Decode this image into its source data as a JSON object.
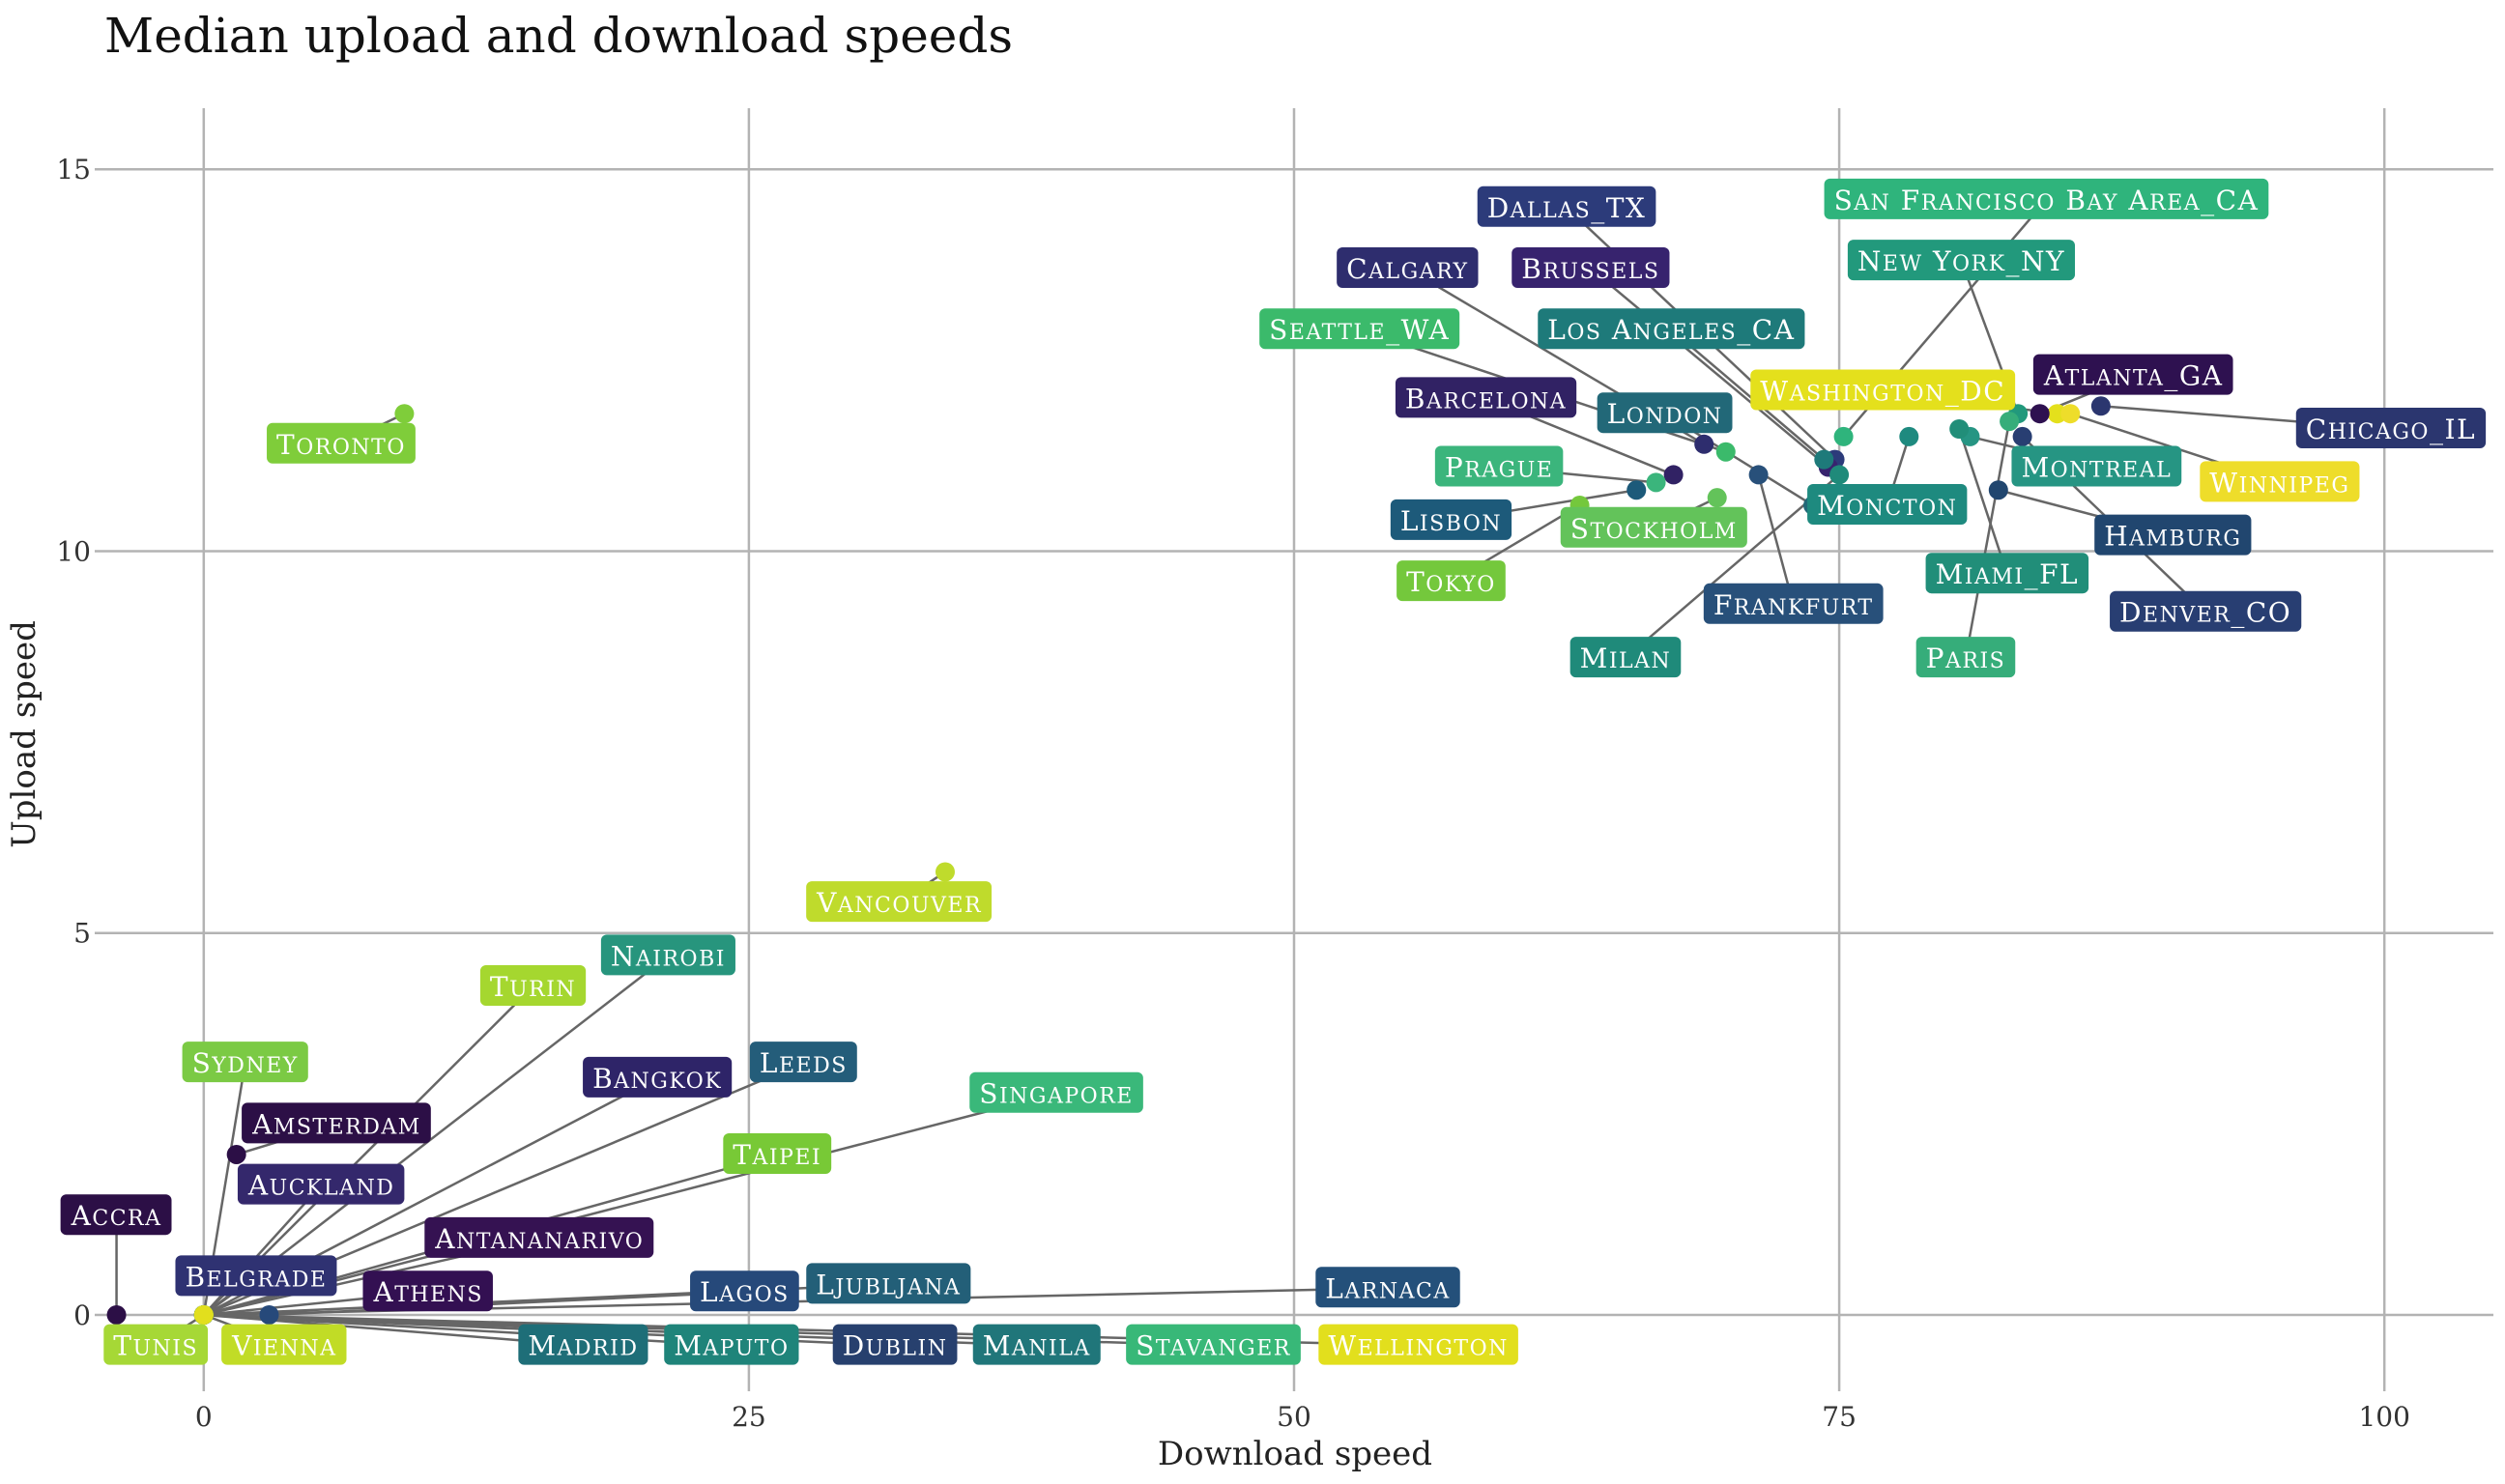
{
  "chart_data": {
    "type": "scatter",
    "title": "Median upload and download speeds",
    "xlabel": "Download speed",
    "ylabel": "Upload speed",
    "xlim": [
      -5,
      105
    ],
    "ylim": [
      -1,
      15.8
    ],
    "x_ticks": [
      0,
      25,
      50,
      75,
      100
    ],
    "x_tick_labels": [
      "0",
      "25",
      "50",
      "75",
      "100"
    ],
    "y_ticks": [
      0,
      5,
      10,
      15
    ],
    "y_tick_labels": [
      "0",
      "5",
      "10",
      "15"
    ],
    "grid": true,
    "legend": "none",
    "points": [
      {
        "label": "Dallas_TX",
        "x": 74.8,
        "y": 11.2,
        "label_x": 62.5,
        "label_y": 14.5,
        "color": "#2c3b7a"
      },
      {
        "label": "San Francisco Bay Area_CA",
        "x": 75.2,
        "y": 11.5,
        "label_x": 84.5,
        "label_y": 14.6,
        "color": "#2fb47c"
      },
      {
        "label": "Calgary",
        "x": 68.8,
        "y": 11.4,
        "label_x": 55.2,
        "label_y": 13.7,
        "color": "#2e2d6e"
      },
      {
        "label": "Brussels",
        "x": 74.5,
        "y": 11.1,
        "label_x": 63.6,
        "label_y": 13.7,
        "color": "#37236e"
      },
      {
        "label": "New York_NY",
        "x": 83.2,
        "y": 11.8,
        "label_x": 80.6,
        "label_y": 13.8,
        "color": "#22997c"
      },
      {
        "label": "Seattle_WA",
        "x": 69.8,
        "y": 11.3,
        "label_x": 53.0,
        "label_y": 12.9,
        "color": "#3bba6b"
      },
      {
        "label": "Los Angeles_CA",
        "x": 74.3,
        "y": 11.2,
        "label_x": 67.3,
        "label_y": 12.9,
        "color": "#1e7a7a"
      },
      {
        "label": "Washington_DC",
        "x": 85.0,
        "y": 11.8,
        "label_x": 77.0,
        "label_y": 12.1,
        "color": "#e4e01c"
      },
      {
        "label": "Atlanta_GA",
        "x": 84.2,
        "y": 11.8,
        "label_x": 88.5,
        "label_y": 12.3,
        "color": "#2e1150"
      },
      {
        "label": "Barcelona",
        "x": 67.4,
        "y": 11.0,
        "label_x": 58.8,
        "label_y": 12.0,
        "color": "#312264"
      },
      {
        "label": "London",
        "x": 73.8,
        "y": 10.6,
        "label_x": 67.0,
        "label_y": 11.8,
        "color": "#226878"
      },
      {
        "label": "Chicago_IL",
        "x": 87.0,
        "y": 11.9,
        "label_x": 100.3,
        "label_y": 11.6,
        "color": "#2b366f"
      },
      {
        "label": "Winnipeg",
        "x": 85.6,
        "y": 11.8,
        "label_x": 95.2,
        "label_y": 10.9,
        "color": "#eedd2a"
      },
      {
        "label": "Montreal",
        "x": 81.0,
        "y": 11.5,
        "label_x": 86.8,
        "label_y": 11.1,
        "color": "#269583"
      },
      {
        "label": "Prague",
        "x": 66.6,
        "y": 10.9,
        "label_x": 59.4,
        "label_y": 11.1,
        "color": "#3bb57c"
      },
      {
        "label": "Moncton",
        "x": 78.2,
        "y": 11.5,
        "label_x": 77.2,
        "label_y": 10.6,
        "color": "#1e8a7f"
      },
      {
        "label": "Lisbon",
        "x": 65.7,
        "y": 10.8,
        "label_x": 57.2,
        "label_y": 10.4,
        "color": "#1d5a7a"
      },
      {
        "label": "Stockholm",
        "x": 69.4,
        "y": 10.7,
        "label_x": 66.5,
        "label_y": 10.3,
        "color": "#63c35a"
      },
      {
        "label": "Hamburg",
        "x": 82.3,
        "y": 10.8,
        "label_x": 90.3,
        "label_y": 10.2,
        "color": "#21466f"
      },
      {
        "label": "Miami_FL",
        "x": 80.5,
        "y": 11.6,
        "label_x": 82.7,
        "label_y": 9.7,
        "color": "#218e79"
      },
      {
        "label": "Tokyo",
        "x": 63.1,
        "y": 10.6,
        "label_x": 57.2,
        "label_y": 9.6,
        "color": "#74c83c"
      },
      {
        "label": "Frankfurt",
        "x": 71.3,
        "y": 11.0,
        "label_x": 72.9,
        "label_y": 9.3,
        "color": "#28507a"
      },
      {
        "label": "Denver_CO",
        "x": 83.4,
        "y": 11.5,
        "label_x": 91.8,
        "label_y": 9.2,
        "color": "#283e72"
      },
      {
        "label": "Milan",
        "x": 75.0,
        "y": 11.0,
        "label_x": 65.2,
        "label_y": 8.6,
        "color": "#1f8a7a"
      },
      {
        "label": "Paris",
        "x": 82.8,
        "y": 11.7,
        "label_x": 80.8,
        "label_y": 8.6,
        "color": "#36ad7a"
      },
      {
        "label": "Toronto",
        "x": 9.2,
        "y": 11.8,
        "label_x": 6.3,
        "label_y": 11.4,
        "color": "#7fcd3a"
      },
      {
        "label": "Vancouver",
        "x": 34.0,
        "y": 5.8,
        "label_x": 31.9,
        "label_y": 5.4,
        "color": "#bfdb2c"
      },
      {
        "label": "Nairobi",
        "x": 0,
        "y": 0,
        "label_x": 21.3,
        "label_y": 4.7,
        "color": "#27957d"
      },
      {
        "label": "Turin",
        "x": 0,
        "y": 0,
        "label_x": 15.1,
        "label_y": 4.3,
        "color": "#a5d72f"
      },
      {
        "label": "Sydney",
        "x": 0,
        "y": 0,
        "label_x": 1.9,
        "label_y": 3.3,
        "color": "#7bca44"
      },
      {
        "label": "Leeds",
        "x": 0,
        "y": 0,
        "label_x": 27.5,
        "label_y": 3.3,
        "color": "#245d7a"
      },
      {
        "label": "Bangkok",
        "x": 0,
        "y": 0,
        "label_x": 20.8,
        "label_y": 3.1,
        "color": "#2e2468"
      },
      {
        "label": "Singapore",
        "x": 0,
        "y": 0,
        "label_x": 39.1,
        "label_y": 2.9,
        "color": "#3ab87a"
      },
      {
        "label": "Amsterdam",
        "x": 1.5,
        "y": 2.1,
        "label_x": 6.1,
        "label_y": 2.5,
        "color": "#2c0f46"
      },
      {
        "label": "Taipei",
        "x": 0,
        "y": 0,
        "label_x": 26.3,
        "label_y": 2.1,
        "color": "#78c936"
      },
      {
        "label": "Auckland",
        "x": 0,
        "y": 0,
        "label_x": 5.4,
        "label_y": 1.7,
        "color": "#34286c"
      },
      {
        "label": "Accra",
        "x": -4.0,
        "y": 0,
        "label_x": -4.0,
        "label_y": 1.3,
        "color": "#2c0f46"
      },
      {
        "label": "Antananarivo",
        "x": 0,
        "y": 0,
        "label_x": 15.4,
        "label_y": 1.0,
        "color": "#351252"
      },
      {
        "label": "Belgrade",
        "x": 0,
        "y": 0,
        "label_x": 2.4,
        "label_y": 0.5,
        "color": "#2f3272"
      },
      {
        "label": "Athens",
        "x": 0,
        "y": 0,
        "label_x": 10.3,
        "label_y": 0.3,
        "color": "#331052"
      },
      {
        "label": "Lagos",
        "x": 3.0,
        "y": 0,
        "label_x": 24.8,
        "label_y": 0.3,
        "color": "#26497a"
      },
      {
        "label": "Ljubljana",
        "x": 0,
        "y": 0,
        "label_x": 31.4,
        "label_y": 0.4,
        "color": "#235f78"
      },
      {
        "label": "Larnaca",
        "x": 0,
        "y": 0,
        "label_x": 54.3,
        "label_y": 0.35,
        "color": "#24507a"
      },
      {
        "label": "Tunis",
        "x": 0,
        "y": 0,
        "label_x": -2.2,
        "label_y": -0.4,
        "color": "#a6d836"
      },
      {
        "label": "Vienna",
        "x": 0,
        "y": 0,
        "label_x": 3.7,
        "label_y": -0.4,
        "color": "#c1dc26"
      },
      {
        "label": "Madrid",
        "x": 0,
        "y": 0,
        "label_x": 17.4,
        "label_y": -0.4,
        "color": "#1e6e78"
      },
      {
        "label": "Maputo",
        "x": 0,
        "y": 0,
        "label_x": 24.2,
        "label_y": -0.4,
        "color": "#1f847a"
      },
      {
        "label": "Dublin",
        "x": 0,
        "y": 0,
        "label_x": 31.7,
        "label_y": -0.4,
        "color": "#27406e"
      },
      {
        "label": "Manila",
        "x": 0,
        "y": 0,
        "label_x": 38.2,
        "label_y": -0.4,
        "color": "#20767a"
      },
      {
        "label": "Stavanger",
        "x": 0,
        "y": 0,
        "label_x": 46.3,
        "label_y": -0.4,
        "color": "#38b878"
      },
      {
        "label": "Wellington",
        "x": 0,
        "y": 0,
        "label_x": 55.7,
        "label_y": -0.4,
        "color": "#e2df1d"
      }
    ]
  }
}
